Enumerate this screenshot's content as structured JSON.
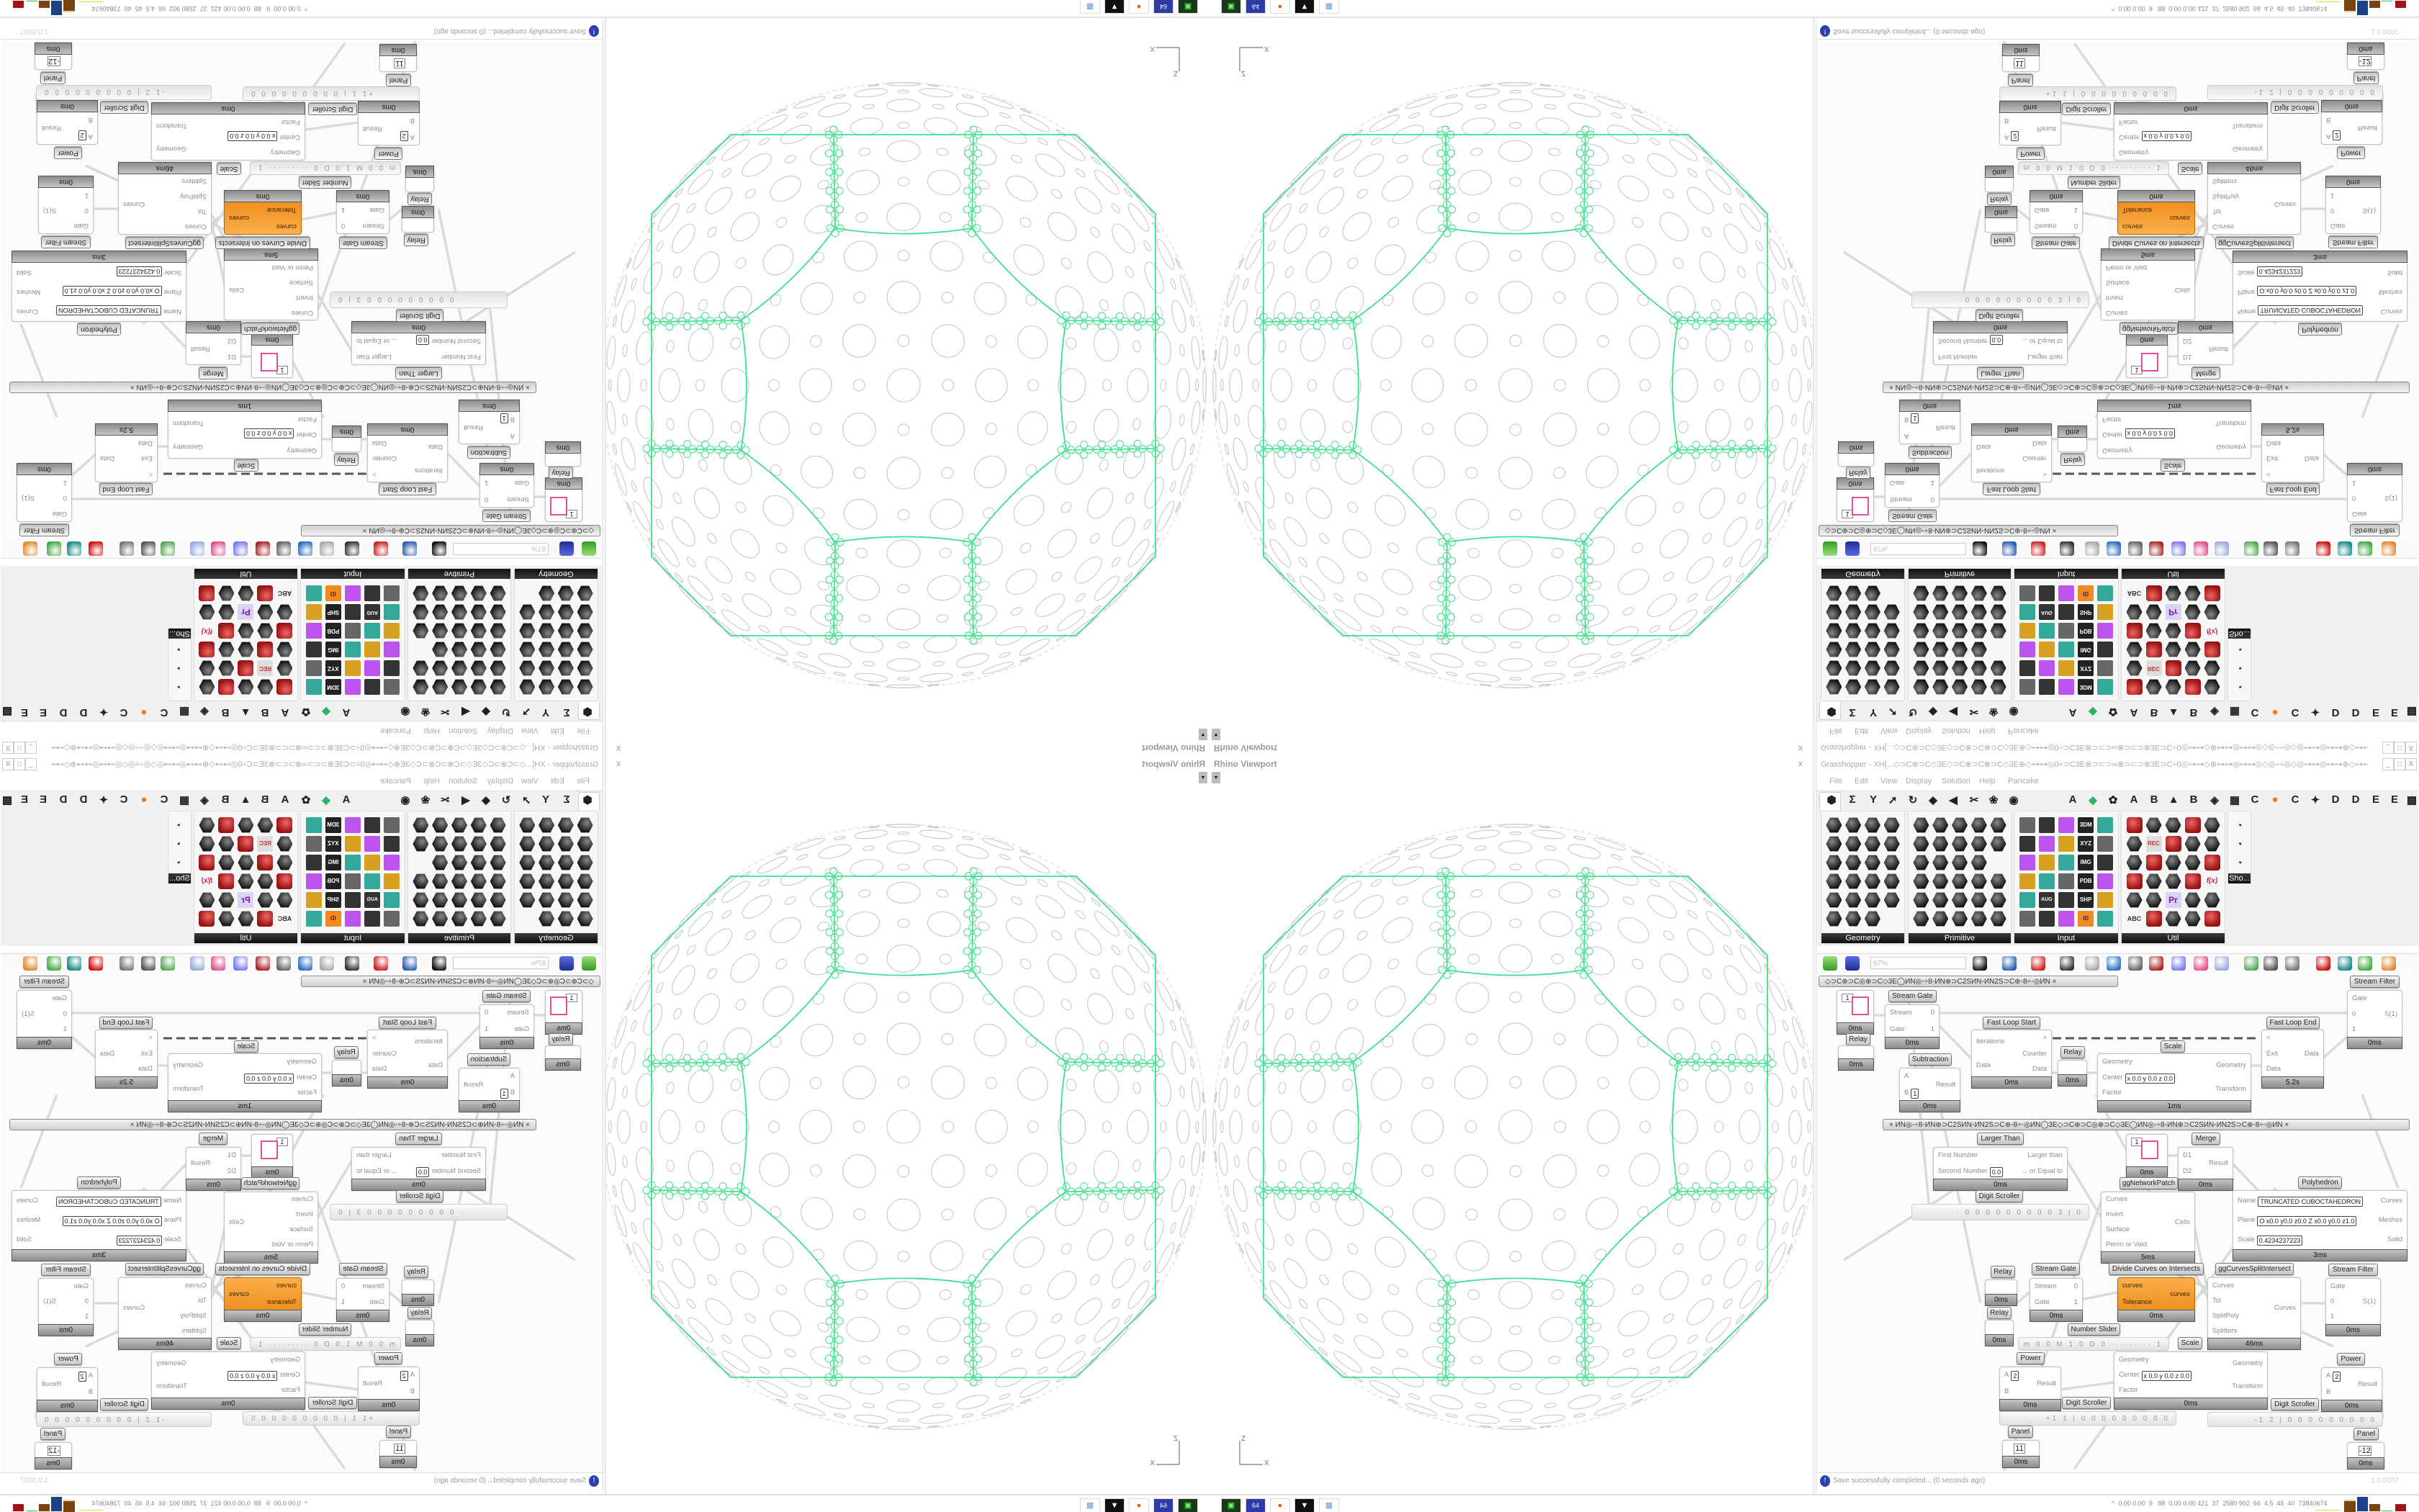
{
  "viewport": {
    "title": "Rhino Viewport",
    "close": "x",
    "dropdown": "▾",
    "axis_x": "X",
    "axis_z": "Z"
  },
  "window": {
    "title": "Grasshopper - XH[...◇⊃C⊕⊃C◇3E◇⊃C⊗⊃C⊗⊃C◇3E⊕◇⊶⊶◎0÷⊃C3E⊗⊃⊂⊃∞⊗⊃⊂⊃⊗3E⊃C÷0◎⊶⊶◇⊕⊶⊶◎⊶⊶◎◇◎÷÷◎◇◎⊶⊶◎⊶⊶⊕◇⊶⊶◎0÷⊃C3E⊗⊃⊂⊃∞⊗⊃...",
    "minimize": "_",
    "maximize": "□",
    "close": "X"
  },
  "menu": [
    "File",
    "Edit",
    "View",
    "Display",
    "Solution",
    "Help",
    "Pancake"
  ],
  "tabs": {
    "symbols": [
      "⬢",
      "Σ",
      "Y",
      "➚",
      "↻",
      "◆",
      "◀",
      "✂",
      "❀",
      "◉"
    ],
    "letters": [
      "A",
      "◆",
      "✿",
      "A",
      "B",
      "▲",
      "B",
      "◈",
      "▦",
      "C",
      "●",
      "C",
      "✦",
      "D",
      "D",
      "E",
      "E",
      "▩"
    ]
  },
  "panel": {
    "groups": [
      "Geometry",
      "Primitive",
      "Input",
      "Util",
      "Sho..."
    ],
    "input_tiles": [
      "3DM",
      "XYZ",
      "IMG",
      "PDB",
      "SHP",
      "AUG 20",
      "ID"
    ],
    "util_tiles": [
      "REC",
      "Pr",
      "f(x)",
      "ABC"
    ]
  },
  "toolbar": {
    "zoom": "87%"
  },
  "canvas": {
    "group_headers": [
      "◇⊃C⊕⊃C◎⊕⊃C◇3E◯ИN◎◦÷8◦ИN⊕⊃C2SИN◦ИN2S⊃C⊕◦8÷◦◎ИN   ×",
      "×      ИN◎◦÷8◦ИN⊕⊃C2SИN◦ИN2S⊃C⊕◦8÷◦◎ИN◯3E◇⊃C⊕⊃C◎⊕⊃C◇3E◯ИN◎◦÷8◦ИN⊕⊃C2SИN◦ИN2S⊃C⊕◦8÷◦◎ИN      ×"
    ],
    "nodes": [
      {
        "name": "",
        "inputs": [],
        "outputs": [],
        "time": "0ms",
        "value": "1"
      },
      {
        "name": "Relay",
        "inputs": [],
        "outputs": [],
        "time": "0ms"
      },
      {
        "name": "Stream Gate",
        "inputs": [
          "Stream",
          "Gate"
        ],
        "outputs": [
          "0",
          "1"
        ],
        "time": "0ms"
      },
      {
        "name": "Subtraction",
        "inputs": [
          "A",
          "B"
        ],
        "input_values": [
          "",
          "1"
        ],
        "outputs": [
          "Result"
        ],
        "time": "0ms"
      },
      {
        "name": "Fast Loop Start",
        "inputs": [
          "Iterations",
          "Data"
        ],
        "outputs": [
          ">",
          "Counter",
          "Data"
        ],
        "time": "0ms"
      },
      {
        "name": "Relay",
        "inputs": [],
        "outputs": [],
        "time": "0ms"
      },
      {
        "name": "Scale",
        "inputs": [
          "Geometry",
          "Center",
          "Factor"
        ],
        "input_values": [
          "",
          "x 0.0  y 0.0  z 0.0",
          ""
        ],
        "outputs": [
          "Geometry",
          "Transform"
        ],
        "time": "1ms"
      },
      {
        "name": "Fast Loop End",
        "inputs": [
          "<",
          "Exit",
          "Data"
        ],
        "outputs": [
          "Data"
        ],
        "time": "5.2s"
      },
      {
        "name": "Stream Filter",
        "inputs": [
          "Gate",
          "0",
          "1"
        ],
        "outputs": [
          "S(1)"
        ],
        "time": "0ms"
      },
      {
        "name": "Larger Than",
        "inputs": [
          "First Number",
          "Second Number"
        ],
        "input_values": [
          "",
          "0.0"
        ],
        "outputs": [
          "Larger than",
          "... or Equal to"
        ],
        "time": "0ms"
      },
      {
        "name": "Digit Scroller",
        "value": "· 0 0 0 0 0 0 0 0 0 3 | 0"
      },
      {
        "name": "",
        "inputs": [],
        "outputs": [],
        "time": "0ms",
        "value": "1"
      },
      {
        "name": "ggNetworkPatch",
        "inputs": [
          "Curves",
          "Invert",
          "Surface",
          "Perim or Void"
        ],
        "outputs": [
          "Cells"
        ],
        "time": "5ms"
      },
      {
        "name": "Merge",
        "inputs": [
          "D1",
          "D2"
        ],
        "outputs": [
          "Result"
        ],
        "time": "0ms"
      },
      {
        "name": "Polyhedron",
        "inputs": [
          "Name",
          "Plane",
          "Scale"
        ],
        "input_values": [
          "TRUNCATED CUBOCTAHEDRON",
          "O x0.0 y0.0 z0.0  Z x0.0 y0.0 z1.0",
          "0.4234237223"
        ],
        "outputs": [
          "Curves",
          "Meshes",
          "Solid"
        ],
        "time": "3ms"
      },
      {
        "name": "Relay",
        "inputs": [],
        "outputs": [],
        "time": "0ms"
      },
      {
        "name": "Relay",
        "inputs": [],
        "outputs": [],
        "time": "0ms"
      },
      {
        "name": "Stream Gate",
        "inputs": [
          "Stream",
          "Gate"
        ],
        "outputs": [
          "0",
          "1"
        ],
        "time": "0ms"
      },
      {
        "name": "Divide Curves on Intersects",
        "inputs": [
          "curves",
          "Tolerance"
        ],
        "outputs": [
          "curves"
        ],
        "time": "0ms"
      },
      {
        "name": "ggCurvesSplitIntersect",
        "inputs": [
          "Curves",
          "Tol",
          "SplitPoly",
          "Splitters"
        ],
        "outputs": [
          "Curves"
        ],
        "time": "46ms"
      },
      {
        "name": "Stream Filter",
        "inputs": [
          "Gate",
          "0",
          "1"
        ],
        "outputs": [
          "S(1)"
        ],
        "time": "0ms"
      },
      {
        "name": "Number Slider",
        "value": "m 0.0  M 1.0  D 0 ········· 1 ○"
      },
      {
        "name": "Scale",
        "inputs": [
          "Geometry",
          "Center",
          "Factor"
        ],
        "input_values": [
          "",
          "x 0.0  y 0.0  z 0.0",
          ""
        ],
        "outputs": [
          "Geometry",
          "Transform"
        ],
        "time": "0ms"
      },
      {
        "name": "Power",
        "inputs": [
          "A",
          "B"
        ],
        "input_values": [
          "2",
          ""
        ],
        "outputs": [
          "Result"
        ],
        "time": "0ms"
      },
      {
        "name": "Digit Scroller",
        "value": "+1 1 | 0 0 0 0 0 0 0 0 0"
      },
      {
        "name": "Panel",
        "inputs": [],
        "outputs": [],
        "time": "0ms",
        "value": "11"
      },
      {
        "name": "Power",
        "inputs": [
          "A",
          "B"
        ],
        "input_values": [
          "2",
          ""
        ],
        "outputs": [
          "Result"
        ],
        "time": "0ms"
      },
      {
        "name": "Digit Scroller",
        "value": "-1 2 | 0 0 0 0 0 0 0 0 0"
      },
      {
        "name": "Panel",
        "inputs": [],
        "outputs": [],
        "time": "0ms",
        "value": "-12"
      }
    ]
  },
  "status": {
    "message": "Save successfully completed... (0 seconds ago)",
    "version": "1.0.0007"
  },
  "taskbar": {
    "icons": [
      "green-drive-icon",
      "floppy-64-icon",
      "firefox-icon",
      "wolf-icon",
      "calculator-icon"
    ],
    "floppy_label": "64",
    "stats": "^  0.00 0.00  9   88  0.00 0.00 421  37  2580 902  66  4.5  45  40  73840674"
  },
  "colors": {
    "accent_orange": "#f0901e",
    "curve_green": "#3ee08e",
    "geometry_gray": "#c8c8c8",
    "status_blue": "#2a3fb0"
  }
}
